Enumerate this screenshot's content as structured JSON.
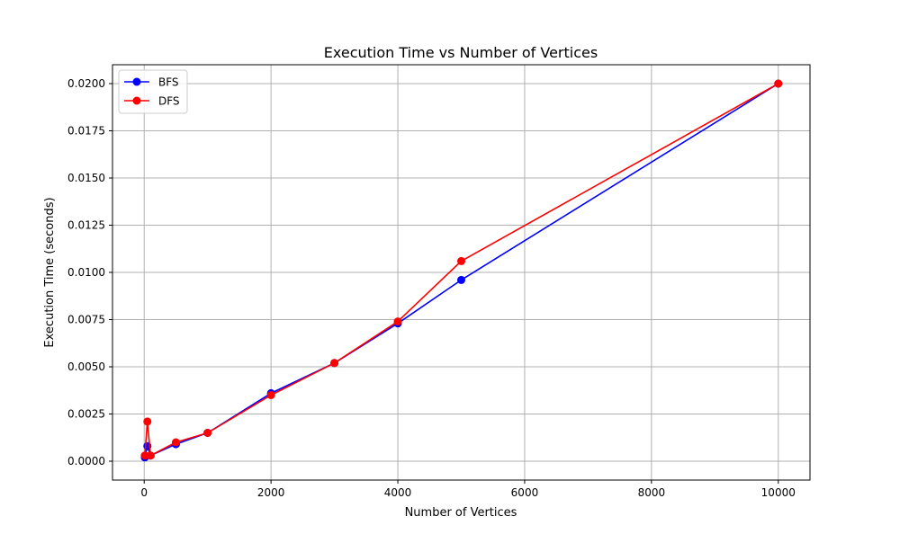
{
  "chart_data": {
    "type": "line",
    "title": "Execution Time vs Number of Vertices",
    "xlabel": "Number of Vertices",
    "ylabel": "Execution Time (seconds)",
    "xlim": [
      -500,
      10500
    ],
    "ylim": [
      -0.001,
      0.021
    ],
    "x_ticks": [
      0,
      2000,
      4000,
      6000,
      8000,
      10000
    ],
    "x_tick_labels": [
      "0",
      "2000",
      "4000",
      "6000",
      "8000",
      "10000"
    ],
    "y_ticks": [
      0.0,
      0.0025,
      0.005,
      0.0075,
      0.01,
      0.0125,
      0.015,
      0.0175,
      0.02
    ],
    "y_tick_labels": [
      "0.0000",
      "0.0025",
      "0.0050",
      "0.0075",
      "0.0100",
      "0.0125",
      "0.0150",
      "0.0175",
      "0.0200"
    ],
    "grid": true,
    "legend_position": "upper-left",
    "series": [
      {
        "name": "BFS",
        "color": "#0000ff",
        "marker": "circle",
        "x": [
          10,
          50,
          100,
          500,
          1000,
          2000,
          3000,
          4000,
          5000,
          10000
        ],
        "y": [
          0.0002,
          0.0008,
          0.0003,
          0.0009,
          0.0015,
          0.0036,
          0.0052,
          0.0073,
          0.0096,
          0.02
        ]
      },
      {
        "name": "DFS",
        "color": "#ff0000",
        "marker": "circle",
        "x": [
          10,
          50,
          100,
          500,
          1000,
          2000,
          3000,
          4000,
          5000,
          10000
        ],
        "y": [
          0.0003,
          0.0021,
          0.0003,
          0.001,
          0.0015,
          0.0035,
          0.0052,
          0.0074,
          0.0106,
          0.02
        ]
      }
    ]
  }
}
